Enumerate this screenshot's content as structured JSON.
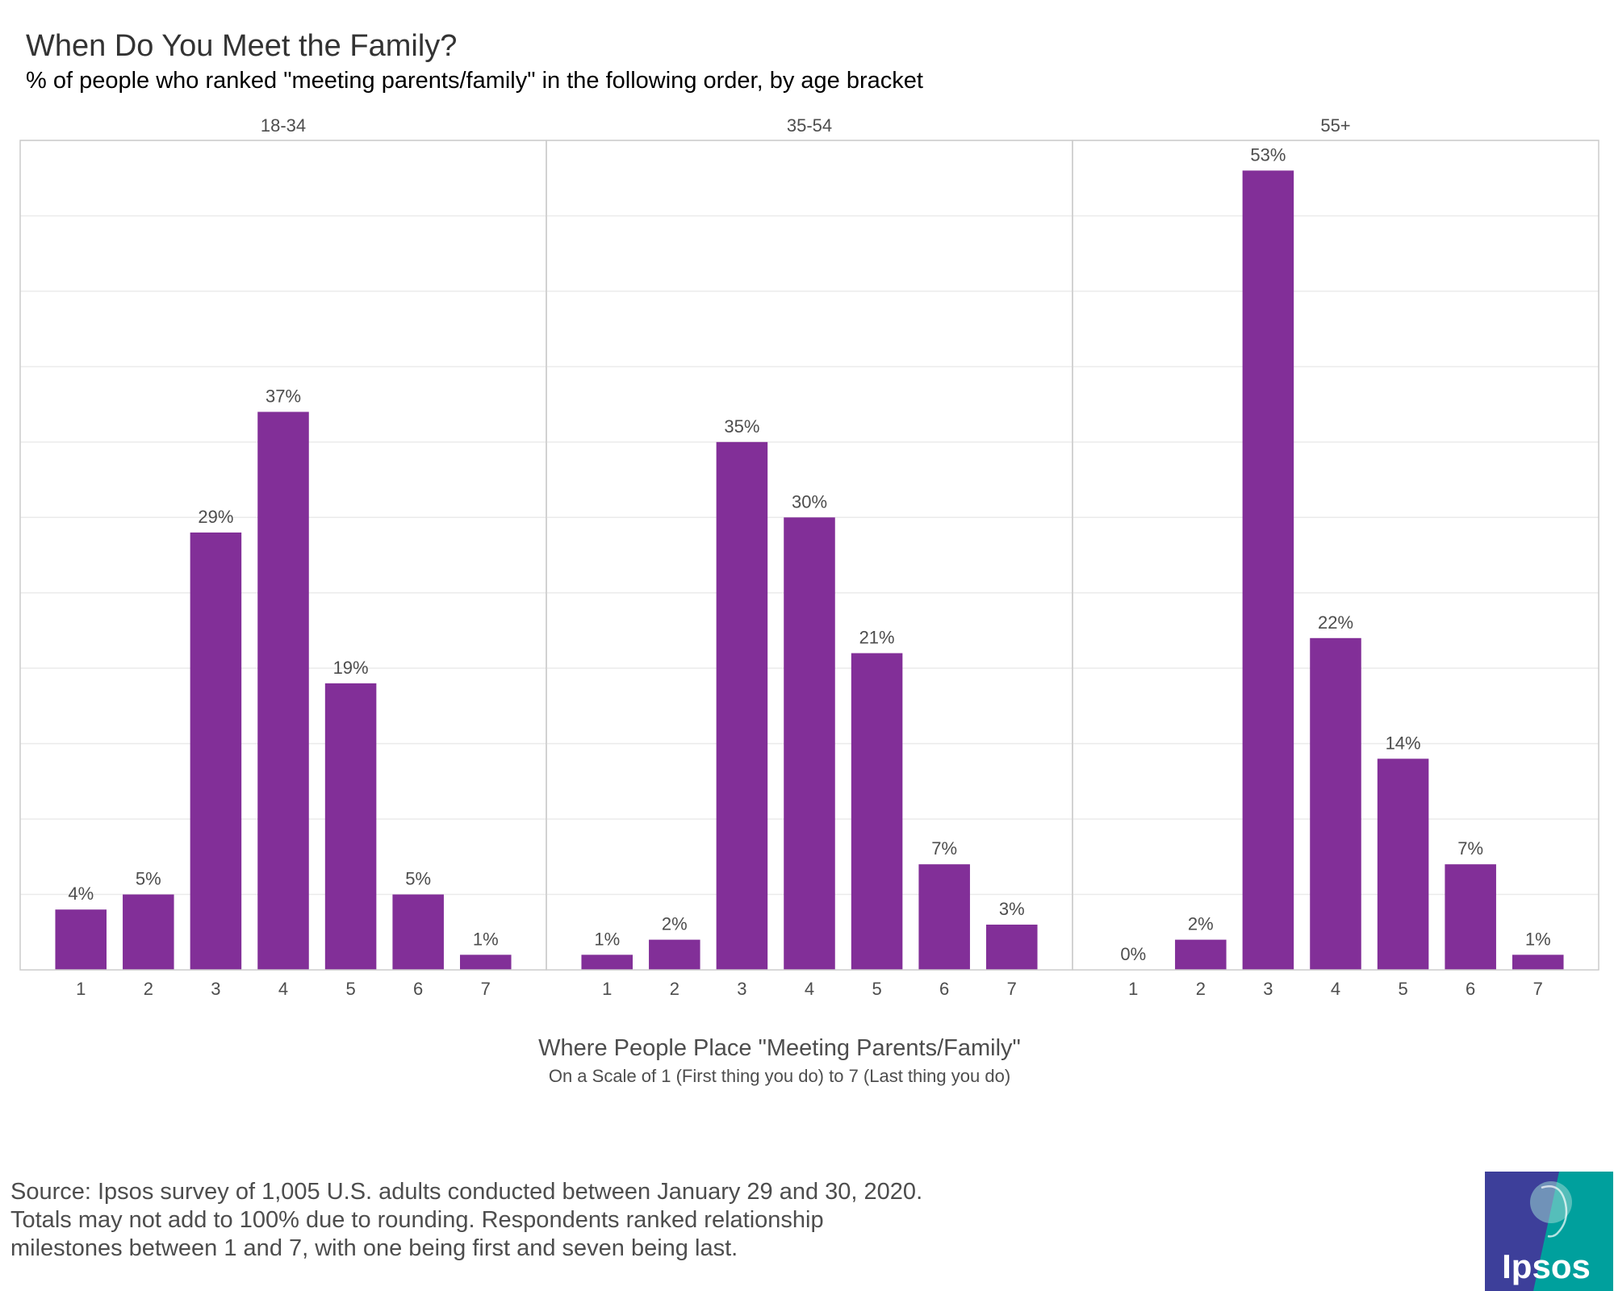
{
  "title": "When Do You Meet the Family?",
  "subtitle": "% of people who ranked \"meeting parents/family\" in the following order, by age bracket",
  "x_axis_title": "Where People Place \"Meeting Parents/Family\"",
  "x_axis_subtitle": "On a Scale of 1 (First thing you do) to 7 (Last thing you do)",
  "source_lines": [
    "Source: Ipsos survey of 1,005 U.S. adults conducted between January 29 and 30, 2020.",
    "Totals may not add to 100% due to rounding. Respondents ranked relationship",
    "milestones between 1 and 7, with one being first and seven being last."
  ],
  "logo": {
    "text": "Ipsos",
    "colors": [
      "#3d3f9a",
      "#00a09d"
    ]
  },
  "colors": {
    "bar": "#822f98",
    "grid": "#ebebeb",
    "panel_border": "#cccccc",
    "text": "#4d4d4d"
  },
  "chart_data": {
    "type": "bar",
    "title": "When Do You Meet the Family?",
    "xlabel": "Where People Place \"Meeting Parents/Family\"",
    "ylabel": "",
    "ylim": [
      0,
      55
    ],
    "categories": [
      "1",
      "2",
      "3",
      "4",
      "5",
      "6",
      "7"
    ],
    "panels": [
      {
        "name": "18-34",
        "values": [
          4,
          5,
          29,
          37,
          19,
          5,
          1
        ],
        "labels": [
          "4%",
          "5%",
          "29%",
          "37%",
          "19%",
          "5%",
          "1%"
        ]
      },
      {
        "name": "35-54",
        "values": [
          1,
          2,
          35,
          30,
          21,
          7,
          3
        ],
        "labels": [
          "1%",
          "2%",
          "35%",
          "30%",
          "21%",
          "7%",
          "3%"
        ]
      },
      {
        "name": "55+",
        "values": [
          0,
          2,
          53,
          22,
          14,
          7,
          1
        ],
        "labels": [
          "0%",
          "2%",
          "53%",
          "22%",
          "14%",
          "7%",
          "1%"
        ]
      }
    ]
  }
}
